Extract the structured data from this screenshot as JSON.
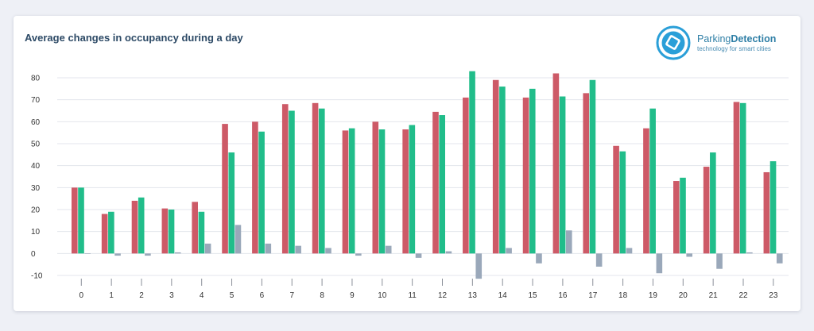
{
  "header": {
    "title": "Average changes in occupancy during a day"
  },
  "logo": {
    "name_part1": "Parking",
    "name_part2": "Detection",
    "tagline": "technology for smart cities"
  },
  "colors": {
    "series_red": "#cd5a67",
    "series_green": "#21bd8a",
    "series_gray": "#9aa8ba",
    "grid": "#e3e6ec",
    "logo_blue": "#2a9fd8"
  },
  "chart_data": {
    "type": "bar",
    "title": "Average changes in occupancy during a day",
    "xlabel": "",
    "ylabel": "",
    "ylim": [
      -10,
      80
    ],
    "yticks": [
      -10,
      0,
      10,
      20,
      30,
      40,
      50,
      60,
      70,
      80
    ],
    "grid": true,
    "categories": [
      "0",
      "1",
      "2",
      "3",
      "4",
      "5",
      "6",
      "7",
      "8",
      "9",
      "10",
      "11",
      "12",
      "13",
      "14",
      "15",
      "16",
      "17",
      "18",
      "19",
      "20",
      "21",
      "22",
      "23"
    ],
    "series": [
      {
        "color": "#cd5a67",
        "values": [
          30,
          18,
          24,
          20.5,
          23.5,
          59,
          60,
          68,
          68.5,
          56,
          60,
          56.5,
          64.5,
          71,
          79,
          71,
          82,
          73,
          49,
          57,
          33,
          39.5,
          69,
          37
        ]
      },
      {
        "color": "#21bd8a",
        "values": [
          30,
          19,
          25.5,
          20,
          19,
          46,
          55.5,
          65,
          66,
          57,
          56.5,
          58.5,
          63,
          83,
          76,
          75,
          71.5,
          79,
          46.5,
          66,
          34.5,
          46,
          68.5,
          42
        ]
      },
      {
        "color": "#9aa8ba",
        "values": [
          0,
          -1,
          -1,
          0.5,
          4.5,
          13,
          4.5,
          3.5,
          2.5,
          -1,
          3.5,
          -2,
          1,
          -11.5,
          2.5,
          -4.5,
          10.5,
          -6,
          2.5,
          -9,
          -1.5,
          -7,
          0.5,
          -4.5
        ]
      }
    ]
  }
}
